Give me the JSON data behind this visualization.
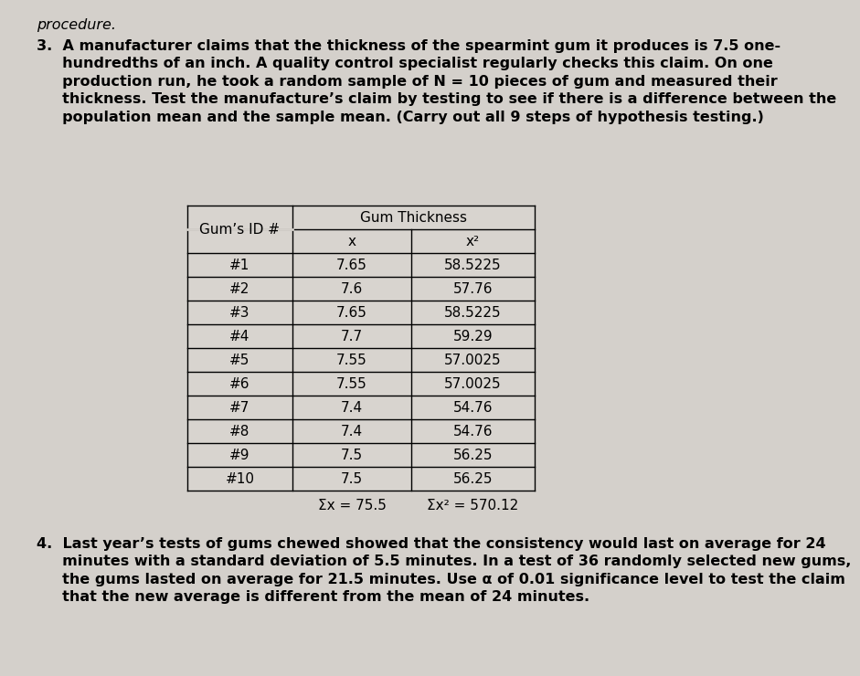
{
  "background_color": "#d4d0cb",
  "col1_header": "Gum’s ID #",
  "col2_header": "Gum Thickness",
  "col2_subheader": "x",
  "col3_header": "x²",
  "gum_ids": [
    "#1",
    "#2",
    "#3",
    "#4",
    "#5",
    "#6",
    "#7",
    "#8",
    "#9",
    "#10"
  ],
  "x_values": [
    "7.65",
    "7.6",
    "7.65",
    "7.7",
    "7.55",
    "7.55",
    "7.4",
    "7.4",
    "7.5",
    "7.5"
  ],
  "x2_values": [
    "58.5225",
    "57.76",
    "58.5225",
    "59.29",
    "57.0025",
    "57.0025",
    "54.76",
    "54.76",
    "56.25",
    "56.25"
  ],
  "sum_x": "Σx = 75.5",
  "sum_x2": "Σx² = 570.12",
  "border_color": "#000000",
  "text_color": "#000000",
  "font_size_body": 11.5,
  "font_size_table": 11.0,
  "font_size_header_cell": 11.0,
  "p3_line1": "3.  A manufacturer claims that the thickness of the spearmint gum it produces is 7.5 one-",
  "p3_line2": "     hundredths of an inch. A quality control specialist regularly checks this claim. On one",
  "p3_line3": "     production run, he took a random sample of N = 10 pieces of gum and measured their",
  "p3_line4": "     thickness. Test the manufacture’s claim by testing to see if there is a difference between the",
  "p3_line5": "     population mean and the sample mean. (Carry out all 9 steps of hypothesis testing.)",
  "p4_line1": "4.  Last year’s tests of gums chewed showed that the consistency would last on average for 24",
  "p4_line2": "     minutes with a standard deviation of 5.5 minutes. In a test of 36 randomly selected new gums,",
  "p4_line3": "     the gums lasted on average for 21.5 minutes. Use α of 0.01 significance level to test the claim",
  "p4_line4": "     that the new average is different from the mean of 24 minutes.",
  "header_text": "procedure."
}
